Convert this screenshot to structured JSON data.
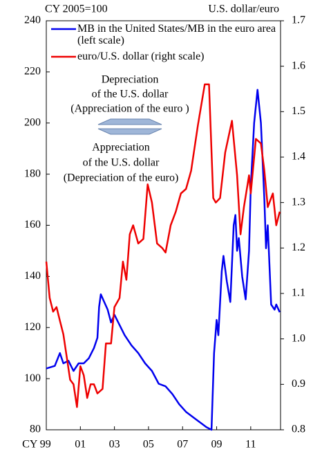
{
  "chart_data": {
    "type": "line",
    "y_label": "CY 2005=100",
    "y2_label": "U.S. dollar/euro",
    "annotations": [
      "Depreciation",
      "of the U.S. dollar",
      "(Appreciation of the euro )",
      "Appreciation",
      "of the U.S. dollar",
      "(Depreciation of the euro)"
    ],
    "xlim": [
      1999,
      2012.75
    ],
    "xticks": [
      {
        "value": 1999,
        "label": "CY 99"
      },
      {
        "value": 2001,
        "label": "01"
      },
      {
        "value": 2003,
        "label": "03"
      },
      {
        "value": 2005,
        "label": "05"
      },
      {
        "value": 2007,
        "label": "07"
      },
      {
        "value": 2009,
        "label": "09"
      },
      {
        "value": 2011,
        "label": "11"
      }
    ],
    "ylim": [
      80,
      240
    ],
    "yticks": [
      80,
      100,
      120,
      140,
      160,
      180,
      200,
      220,
      240
    ],
    "y2lim": [
      0.8,
      1.7
    ],
    "y2ticks": [
      0.8,
      0.9,
      {
        "value": 1,
        "label": "1.0"
      },
      1.1,
      1.2,
      1.3,
      1.4,
      1.5,
      1.6,
      1.7
    ],
    "series": [
      {
        "name": "MB in the United States/MB in the euro area (left scale)",
        "color": "#0000ee",
        "x": [
          1999.0,
          1999.5,
          1999.8,
          2000.0,
          2000.3,
          2000.6,
          2000.9,
          2001.2,
          2001.5,
          2001.8,
          2002.0,
          2002.1,
          2002.2,
          2002.4,
          2002.6,
          2002.8,
          2003.0,
          2003.3,
          2003.6,
          2004.0,
          2004.4,
          2004.8,
          2005.2,
          2005.6,
          2006.0,
          2006.4,
          2006.8,
          2007.2,
          2007.6,
          2008.0,
          2008.4,
          2008.7,
          2008.85,
          2009.0,
          2009.1,
          2009.3,
          2009.4,
          2009.6,
          2009.8,
          2010.0,
          2010.1,
          2010.2,
          2010.3,
          2010.5,
          2010.7,
          2010.9,
          2011.0,
          2011.2,
          2011.4,
          2011.6,
          2011.8,
          2011.9,
          2012.0,
          2012.2,
          2012.4,
          2012.5,
          2012.7
        ],
        "values": [
          104,
          105,
          110,
          106,
          107,
          103,
          106,
          106,
          108,
          112,
          116,
          128,
          133,
          130,
          127,
          122,
          125,
          121,
          117,
          113,
          110,
          106,
          103,
          98,
          97,
          94,
          90,
          87,
          85,
          83,
          81,
          80,
          110,
          123,
          117,
          142,
          148,
          138,
          130,
          160,
          164,
          150,
          155,
          140,
          131,
          150,
          175,
          200,
          213,
          200,
          170,
          151,
          160,
          129,
          127,
          129,
          126
        ]
      },
      {
        "name": "euro/U.S. dollar (right scale)",
        "color": "#ee0000",
        "axis": "y2",
        "x": [
          1999.0,
          1999.2,
          1999.4,
          1999.6,
          1999.8,
          2000.0,
          2000.2,
          2000.4,
          2000.6,
          2000.8,
          2001.0,
          2001.2,
          2001.4,
          2001.6,
          2001.8,
          2002.0,
          2002.3,
          2002.5,
          2002.8,
          2003.0,
          2003.3,
          2003.5,
          2003.7,
          2003.9,
          2004.1,
          2004.4,
          2004.7,
          2004.95,
          2005.2,
          2005.5,
          2005.8,
          2006.0,
          2006.3,
          2006.6,
          2006.9,
          2007.2,
          2007.5,
          2007.9,
          2008.3,
          2008.55,
          2008.8,
          2008.95,
          2009.2,
          2009.5,
          2009.9,
          2010.2,
          2010.4,
          2010.6,
          2010.9,
          2011.0,
          2011.3,
          2011.6,
          2011.8,
          2012.0,
          2012.3,
          2012.5,
          2012.7
        ],
        "values": [
          1.17,
          1.09,
          1.06,
          1.07,
          1.04,
          1.01,
          0.96,
          0.91,
          0.9,
          0.85,
          0.94,
          0.92,
          0.87,
          0.9,
          0.9,
          0.88,
          0.89,
          0.99,
          0.99,
          1.07,
          1.09,
          1.17,
          1.13,
          1.23,
          1.25,
          1.21,
          1.22,
          1.34,
          1.3,
          1.21,
          1.2,
          1.19,
          1.25,
          1.28,
          1.32,
          1.33,
          1.37,
          1.47,
          1.56,
          1.56,
          1.31,
          1.3,
          1.31,
          1.41,
          1.48,
          1.36,
          1.23,
          1.29,
          1.36,
          1.32,
          1.44,
          1.43,
          1.37,
          1.29,
          1.32,
          1.25,
          1.28
        ]
      }
    ]
  }
}
